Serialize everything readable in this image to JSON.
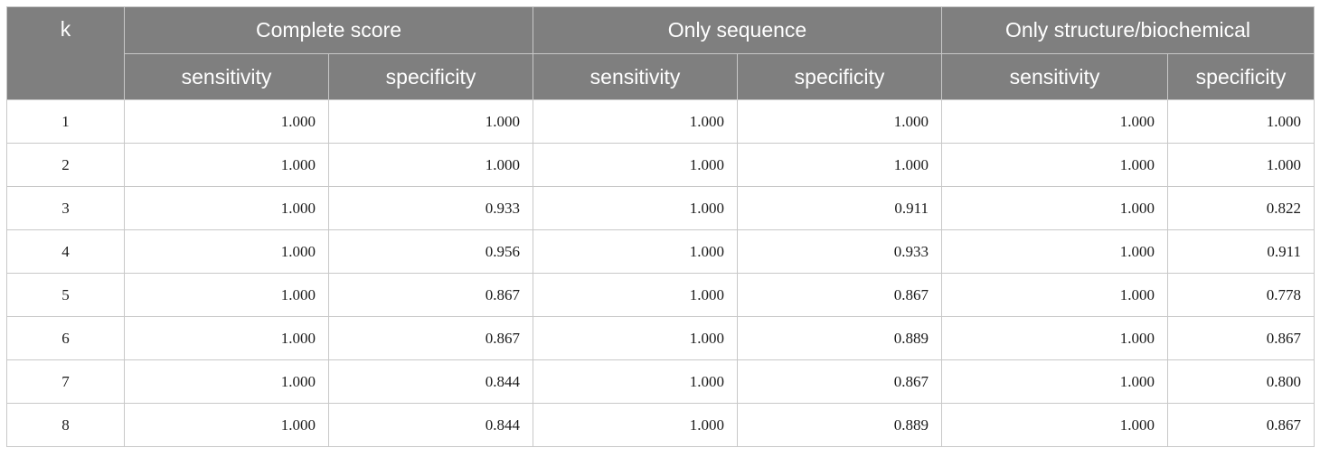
{
  "table": {
    "k_header": "k",
    "groups": [
      "Complete score",
      "Only sequence",
      "Only structure/biochemical"
    ],
    "subheaders": [
      "sensitivity",
      "specificity",
      "sensitivity",
      "specificity",
      "sensitivity",
      "specificity"
    ],
    "rows": [
      {
        "k": "1",
        "values": [
          "1.000",
          "1.000",
          "1.000",
          "1.000",
          "1.000",
          "1.000"
        ]
      },
      {
        "k": "2",
        "values": [
          "1.000",
          "1.000",
          "1.000",
          "1.000",
          "1.000",
          "1.000"
        ]
      },
      {
        "k": "3",
        "values": [
          "1.000",
          "0.933",
          "1.000",
          "0.911",
          "1.000",
          "0.822"
        ]
      },
      {
        "k": "4",
        "values": [
          "1.000",
          "0.956",
          "1.000",
          "0.933",
          "1.000",
          "0.911"
        ]
      },
      {
        "k": "5",
        "values": [
          "1.000",
          "0.867",
          "1.000",
          "0.867",
          "1.000",
          "0.778"
        ]
      },
      {
        "k": "6",
        "values": [
          "1.000",
          "0.867",
          "1.000",
          "0.889",
          "1.000",
          "0.867"
        ]
      },
      {
        "k": "7",
        "values": [
          "1.000",
          "0.844",
          "1.000",
          "0.867",
          "1.000",
          "0.800"
        ]
      },
      {
        "k": "8",
        "values": [
          "1.000",
          "0.844",
          "1.000",
          "0.889",
          "1.000",
          "0.867"
        ]
      }
    ]
  },
  "colors": {
    "header_bg": "#7f7f7f",
    "header_text": "#ffffff",
    "grid": "#c8c8c8",
    "body_text": "#1a1a1a"
  }
}
